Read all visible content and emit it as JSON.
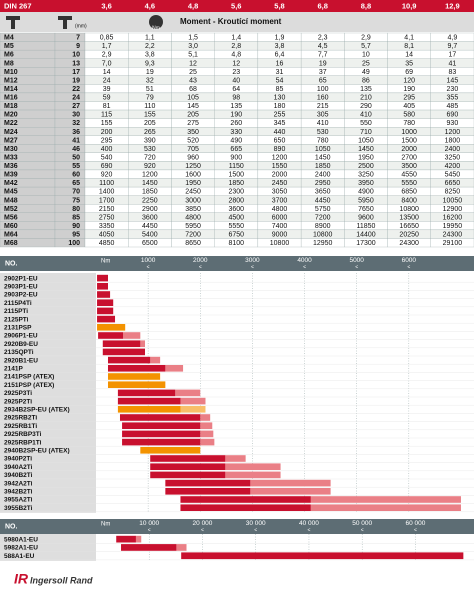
{
  "table": {
    "header": [
      "DIN 267",
      "3,6",
      "4,6",
      "4,8",
      "5,6",
      "5,8",
      "6,8",
      "8,8",
      "10,9",
      "12,9"
    ],
    "icon_labels": [
      "(mm)",
      "Nm"
    ],
    "subheader": "Moment - Kroutící moment",
    "rows": [
      [
        "M4",
        "7",
        "0,85",
        "1,1",
        "1,5",
        "1,4",
        "1,9",
        "2,3",
        "2,9",
        "4,1",
        "4,9"
      ],
      [
        "M5",
        "9",
        "1,7",
        "2,2",
        "3,0",
        "2,8",
        "3,8",
        "4,5",
        "5,7",
        "8,1",
        "9,7"
      ],
      [
        "M6",
        "10",
        "2,9",
        "3,8",
        "5,1",
        "4,8",
        "6,4",
        "7,7",
        "10",
        "14",
        "17"
      ],
      [
        "M8",
        "13",
        "7,0",
        "9,3",
        "12",
        "12",
        "16",
        "19",
        "25",
        "35",
        "41"
      ],
      [
        "M10",
        "17",
        "14",
        "19",
        "25",
        "23",
        "31",
        "37",
        "49",
        "69",
        "83"
      ],
      [
        "M12",
        "19",
        "24",
        "32",
        "43",
        "40",
        "54",
        "65",
        "86",
        "120",
        "145"
      ],
      [
        "M14",
        "22",
        "39",
        "51",
        "68",
        "64",
        "85",
        "100",
        "135",
        "190",
        "230"
      ],
      [
        "M16",
        "24",
        "59",
        "79",
        "105",
        "98",
        "130",
        "160",
        "210",
        "295",
        "355"
      ],
      [
        "M18",
        "27",
        "81",
        "110",
        "145",
        "135",
        "180",
        "215",
        "290",
        "405",
        "485"
      ],
      [
        "M20",
        "30",
        "115",
        "155",
        "205",
        "190",
        "255",
        "305",
        "410",
        "580",
        "690"
      ],
      [
        "M22",
        "32",
        "155",
        "205",
        "275",
        "260",
        "345",
        "410",
        "550",
        "780",
        "930"
      ],
      [
        "M24",
        "36",
        "200",
        "265",
        "350",
        "330",
        "440",
        "530",
        "710",
        "1000",
        "1200"
      ],
      [
        "M27",
        "41",
        "295",
        "390",
        "520",
        "490",
        "650",
        "780",
        "1050",
        "1500",
        "1800"
      ],
      [
        "M30",
        "46",
        "400",
        "530",
        "705",
        "665",
        "890",
        "1050",
        "1450",
        "2000",
        "2400"
      ],
      [
        "M33",
        "50",
        "540",
        "720",
        "960",
        "900",
        "1200",
        "1450",
        "1950",
        "2700",
        "3250"
      ],
      [
        "M36",
        "55",
        "690",
        "920",
        "1250",
        "1150",
        "1550",
        "1850",
        "2500",
        "3500",
        "4200"
      ],
      [
        "M39",
        "60",
        "920",
        "1200",
        "1600",
        "1500",
        "2000",
        "2400",
        "3250",
        "4550",
        "5450"
      ],
      [
        "M42",
        "65",
        "1100",
        "1450",
        "1950",
        "1850",
        "2450",
        "2950",
        "3950",
        "5550",
        "6650"
      ],
      [
        "M45",
        "70",
        "1400",
        "1850",
        "2450",
        "2300",
        "3050",
        "3650",
        "4900",
        "6850",
        "8250"
      ],
      [
        "M48",
        "75",
        "1700",
        "2250",
        "3000",
        "2800",
        "3700",
        "4450",
        "5950",
        "8400",
        "10050"
      ],
      [
        "M52",
        "80",
        "2150",
        "2900",
        "3850",
        "3600",
        "4800",
        "5750",
        "7650",
        "10800",
        "12900"
      ],
      [
        "M56",
        "85",
        "2750",
        "3600",
        "4800",
        "4500",
        "6000",
        "7200",
        "9600",
        "13500",
        "16200"
      ],
      [
        "M60",
        "90",
        "3350",
        "4450",
        "5950",
        "5550",
        "7400",
        "8900",
        "11850",
        "16650",
        "19950"
      ],
      [
        "M64",
        "95",
        "4050",
        "5400",
        "7200",
        "6750",
        "9000",
        "10800",
        "14400",
        "20250",
        "24300"
      ],
      [
        "M68",
        "100",
        "4850",
        "6500",
        "8650",
        "8100",
        "10800",
        "12950",
        "17300",
        "24300",
        "29100"
      ]
    ]
  },
  "chart_data": [
    {
      "type": "range-bar",
      "column_title": "NO.",
      "unit": "Nm",
      "tick_marker": "<",
      "xlim": [
        0,
        7250
      ],
      "xticks": [
        1000,
        2000,
        3000,
        4000,
        5000,
        6000
      ],
      "categories": [
        "2902P1-EU",
        "2903P1-EU",
        "2903P2-EU",
        "2115P4Ti",
        "2115PTi",
        "2125PTi",
        "2131PSP",
        "2906P1-EU",
        "2920B9-EU",
        "2135QPTi",
        "2920B1-EU",
        "2141P",
        "2141PSP (ATEX)",
        "2151PSP (ATEX)",
        "2925P3Ti",
        "2925P2Ti",
        "2934B2SP-EU (ATEX)",
        "2925RB2Ti",
        "2925RB1Ti",
        "2925RBP3Ti",
        "2925RBP1Ti",
        "2940B2SP-EU (ATEX)",
        "3940P2Ti",
        "3940A2Ti",
        "3940B2Ti",
        "3942A2Ti",
        "3942B2Ti",
        "3955A2Ti",
        "3955B2Ti"
      ],
      "ranges": [
        [
          20,
          230,
          null
        ],
        [
          20,
          230,
          null
        ],
        [
          20,
          270,
          null
        ],
        [
          20,
          330,
          null
        ],
        [
          20,
          330,
          null
        ],
        [
          20,
          365,
          null
        ],
        [
          20,
          560,
          null
        ],
        [
          40,
          520,
          850
        ],
        [
          130,
          850,
          940
        ],
        [
          130,
          940,
          null
        ],
        [
          230,
          1040,
          1230
        ],
        [
          230,
          1330,
          1670
        ],
        [
          230,
          1230,
          null
        ],
        [
          230,
          1330,
          null
        ],
        [
          420,
          1520,
          2000
        ],
        [
          420,
          1620,
          2100
        ],
        [
          420,
          1620,
          2100
        ],
        [
          460,
          2000,
          2190
        ],
        [
          500,
          2000,
          2230
        ],
        [
          500,
          2000,
          2250
        ],
        [
          500,
          2000,
          2270
        ],
        [
          850,
          2000,
          null
        ],
        [
          1040,
          2480,
          2870
        ],
        [
          1040,
          2480,
          3540
        ],
        [
          1040,
          2480,
          3540
        ],
        [
          1330,
          2960,
          4500
        ],
        [
          1330,
          2960,
          4500
        ],
        [
          1620,
          4120,
          7000
        ],
        [
          1620,
          4120,
          7000
        ]
      ],
      "colors": [
        "#c8102e",
        "#c8102e",
        "#c8102e",
        "#c8102e",
        "#c8102e",
        "#c8102e",
        "#f39200",
        "#c8102e",
        "#c8102e",
        "#c8102e",
        "#c8102e",
        "#c8102e",
        "#f39200",
        "#f39200",
        "#c8102e",
        "#c8102e",
        "#f39200",
        "#c8102e",
        "#c8102e",
        "#c8102e",
        "#c8102e",
        "#f39200",
        "#c8102e",
        "#c8102e",
        "#c8102e",
        "#c8102e",
        "#c8102e",
        "#c8102e",
        "#c8102e"
      ]
    },
    {
      "type": "range-bar",
      "column_title": "NO.",
      "unit": "Nm",
      "tick_marker": "<",
      "xlim": [
        0,
        71000
      ],
      "xticks": [
        {
          "value": 10000,
          "label": "10 000"
        },
        {
          "value": 20000,
          "label": "20 000"
        },
        {
          "value": 30000,
          "label": "30 000"
        },
        {
          "value": 40000,
          "label": "40 000"
        },
        {
          "value": 50000,
          "label": "50 000"
        },
        {
          "value": 60000,
          "label": "60 000"
        }
      ],
      "categories": [
        "5980A1-EU",
        "5982A1-EU",
        "588A1-EU"
      ],
      "ranges": [
        [
          3800,
          7500,
          8500
        ],
        [
          4700,
          15100,
          17000
        ],
        [
          16000,
          69000,
          null
        ]
      ],
      "colors": [
        "#c8102e",
        "#c8102e",
        "#c8102e"
      ]
    }
  ],
  "footer": {
    "logo": "IR",
    "brand": "Ingersoll Rand"
  }
}
